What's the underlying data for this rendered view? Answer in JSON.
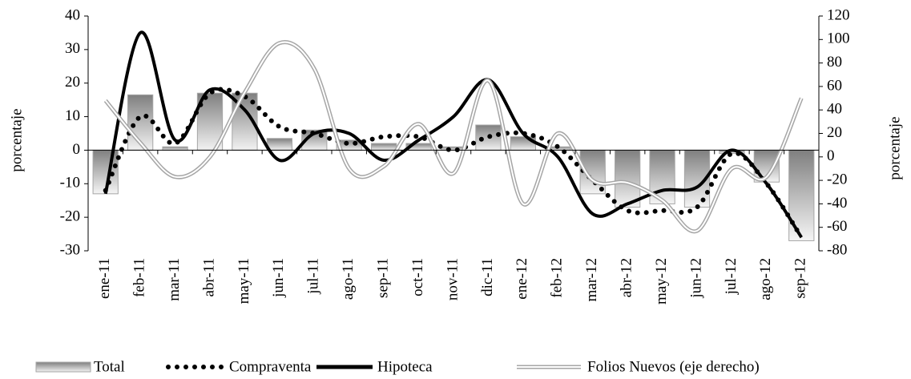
{
  "chart_data": {
    "type": "bar_line",
    "y_label": "porcentaje",
    "y2_label": "porcentaje",
    "categories": [
      "ene-11",
      "feb-11",
      "mar-11",
      "abr-11",
      "may-11",
      "jun-11",
      "jul-11",
      "ago-11",
      "sep-11",
      "oct-11",
      "nov-11",
      "dic-11",
      "ene-12",
      "feb-12",
      "mar-12",
      "abr-12",
      "may-12",
      "jun-12",
      "jul-12",
      "ago-12",
      "sep-12"
    ],
    "ylim": [
      -30,
      40
    ],
    "yticks": [
      -30,
      -20,
      -10,
      0,
      10,
      20,
      30,
      40
    ],
    "y2lim": [
      -80,
      120
    ],
    "y2ticks": [
      -80,
      -60,
      -40,
      -20,
      0,
      20,
      40,
      60,
      80,
      100,
      120
    ],
    "series": [
      {
        "name": "Total",
        "kind": "bar",
        "color": "#a6a6a6",
        "values": [
          -13,
          16.5,
          1,
          17,
          17,
          3.5,
          6,
          3,
          2,
          2,
          1,
          7.5,
          4,
          1,
          -13,
          -17,
          -16,
          -17,
          -1,
          -9.5,
          -27
        ]
      },
      {
        "name": "Compraventa",
        "kind": "dotted",
        "color": "#000000",
        "values": [
          -12,
          10,
          2,
          17,
          16,
          7,
          5,
          2,
          4,
          4,
          0,
          4,
          5,
          1,
          -9,
          -18,
          -18,
          -17,
          -1,
          -10,
          -26
        ]
      },
      {
        "name": "Hipoteca",
        "kind": "solid",
        "color": "#000000",
        "values": [
          -13,
          35,
          3,
          18,
          12,
          -3,
          5,
          5,
          -3,
          3,
          10,
          21,
          5,
          -2,
          -19,
          -16,
          -12,
          -11,
          0,
          -10,
          -26
        ]
      },
      {
        "name": "Folios Nuevos (eje derecho)",
        "kind": "double",
        "color": "#a6a6a6",
        "axis": "y2",
        "values": [
          48,
          12,
          -17,
          0,
          55,
          97,
          75,
          -10,
          -8,
          28,
          -14,
          65,
          -40,
          20,
          -20,
          -22,
          -37,
          -63,
          -10,
          -17,
          50
        ]
      }
    ]
  }
}
